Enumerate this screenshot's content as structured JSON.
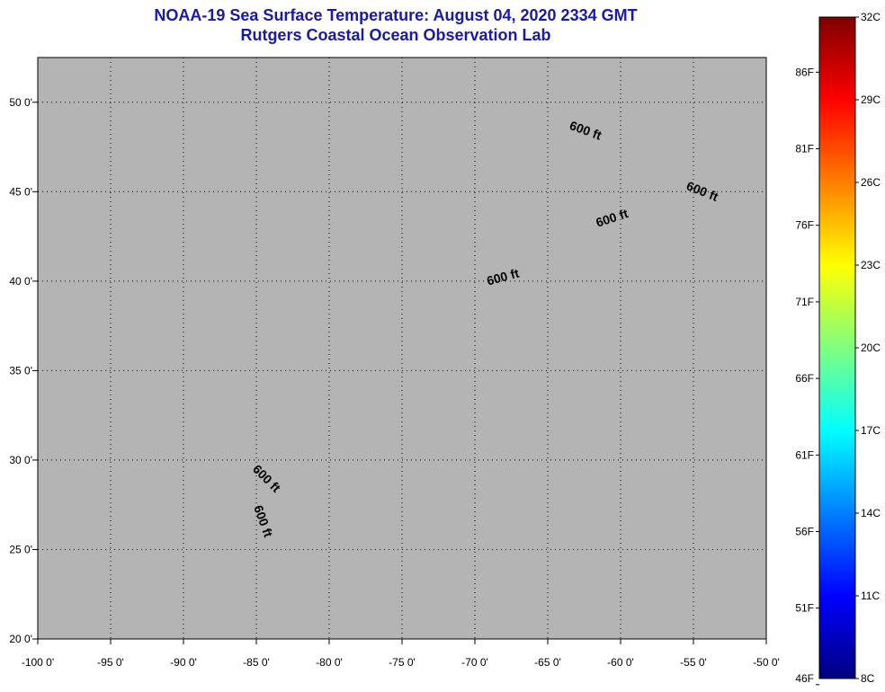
{
  "title": {
    "line1": "NOAA-19 Sea Surface Temperature:  August 04, 2020 2334 GMT",
    "line2": "Rutgers Coastal Ocean Observation Lab"
  },
  "map": {
    "lon_range": [
      -100,
      -50
    ],
    "lat_range": [
      20,
      52.5
    ],
    "lon_ticks": [
      "-100 0'",
      "-95 0'",
      "-90 0'",
      "-85 0'",
      "-80 0'",
      "-75 0'",
      "-70 0'",
      "-65 0'",
      "-60 0'",
      "-55 0'",
      "-50 0'"
    ],
    "lon_tick_values": [
      -100,
      -95,
      -90,
      -85,
      -80,
      -75,
      -70,
      -65,
      -60,
      -55,
      -50
    ],
    "lat_ticks": [
      "20 0'",
      "25 0'",
      "30 0'",
      "35 0'",
      "40 0'",
      "45 0'",
      "50 0'"
    ],
    "lat_tick_values": [
      20,
      25,
      30,
      35,
      40,
      45,
      50
    ],
    "gridlines": true,
    "land_color": "#b4b4b4",
    "contours": [
      {
        "label": "600 ft",
        "lon": -62.5,
        "lat": 48.2,
        "angle": 20
      },
      {
        "label": "600 ft",
        "lon": -54.5,
        "lat": 44.8,
        "angle": 22
      },
      {
        "label": "600 ft",
        "lon": -60.5,
        "lat": 43.3,
        "angle": -18
      },
      {
        "label": "600 ft",
        "lon": -68,
        "lat": 40,
        "angle": -15
      },
      {
        "label": "600 ft",
        "lon": -84.5,
        "lat": 28.8,
        "angle": 45
      },
      {
        "label": "600 ft",
        "lon": -84.8,
        "lat": 26.5,
        "angle": 70
      }
    ]
  },
  "colorbar": {
    "colors": [
      "#00007f",
      "#0000ff",
      "#007fff",
      "#00ffff",
      "#7fff7f",
      "#ffff00",
      "#ff7f00",
      "#ff0000",
      "#7f0000"
    ],
    "min_c": 8,
    "max_c": 32,
    "celsius_ticks": [
      {
        "label": "32C",
        "value": 32
      },
      {
        "label": "29C",
        "value": 29
      },
      {
        "label": "26C",
        "value": 26
      },
      {
        "label": "23C",
        "value": 23
      },
      {
        "label": "20C",
        "value": 20
      },
      {
        "label": "17C",
        "value": 17
      },
      {
        "label": "14C",
        "value": 14
      },
      {
        "label": "11C",
        "value": 11
      },
      {
        "label": "8C",
        "value": 8
      }
    ],
    "fahrenheit_ticks": [
      {
        "label": "86F",
        "value": 86
      },
      {
        "label": "81F",
        "value": 81
      },
      {
        "label": "76F",
        "value": 76
      },
      {
        "label": "71F",
        "value": 71
      },
      {
        "label": "66F",
        "value": 66
      },
      {
        "label": "61F",
        "value": 61
      },
      {
        "label": "56F",
        "value": 56
      },
      {
        "label": "51F",
        "value": 51
      },
      {
        "label": "46F",
        "value": 46
      }
    ]
  }
}
